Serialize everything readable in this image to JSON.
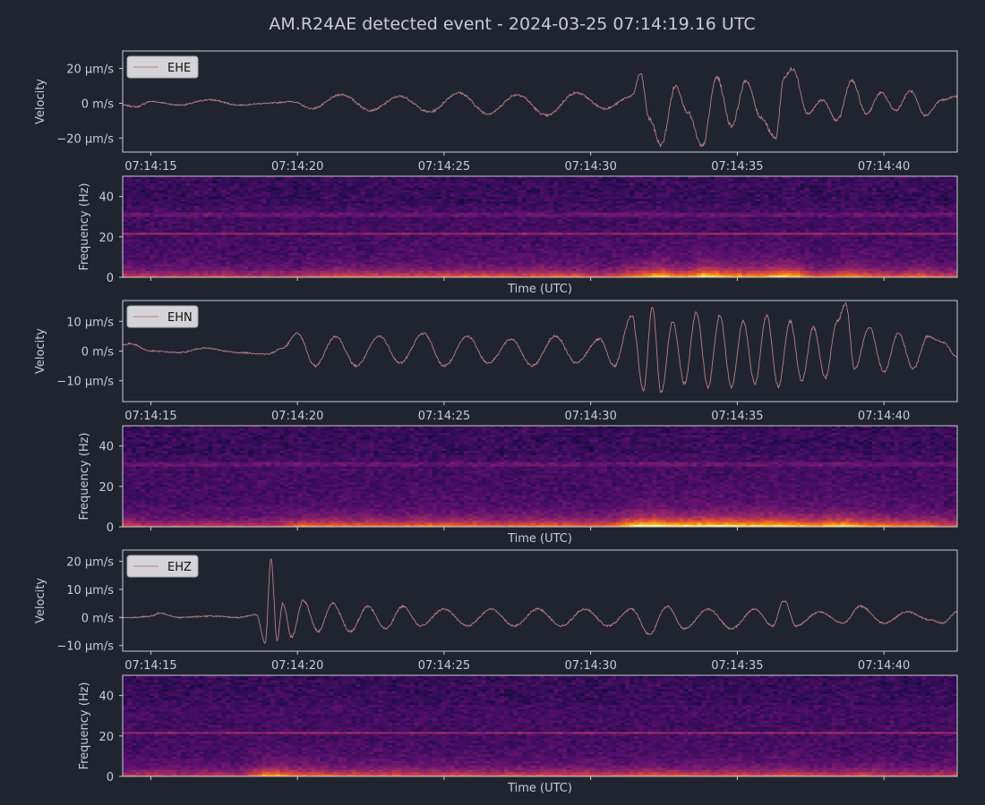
{
  "title": "AM.R24AE detected event - 2024-03-25 07:14:19.16 UTC",
  "colors": {
    "background": "#20242e",
    "trace": "#b88088",
    "axis_frame": "#c9ccd4",
    "text": "#c9ccd4",
    "legend_bg": "#d4d4d8",
    "legend_text": "#111111",
    "spectrogram_colormap": "inferno"
  },
  "chart_data": [
    {
      "type": "line",
      "channel": "EHE",
      "legend": "EHE",
      "ylabel": "Velocity",
      "ylim": [
        -28,
        30
      ],
      "y_ticks": [
        {
          "value": 20,
          "label": "20 µm/s"
        },
        {
          "value": 0,
          "label": "0 m/s"
        },
        {
          "value": -20,
          "label": "−20 µm/s"
        }
      ],
      "x_ticks": [
        "07:14:15",
        "07:14:20",
        "07:14:25",
        "07:14:30",
        "07:14:35",
        "07:14:40"
      ],
      "x_range_s": [
        14.0,
        42.5
      ],
      "legend_position": "top-left",
      "series": [
        {
          "x": [
            14.0,
            14.5,
            15.0,
            16.0,
            17.0,
            18.0,
            19.0,
            19.8,
            20.5,
            21.5,
            22.5,
            23.5,
            24.5,
            25.5,
            26.5,
            27.5,
            28.5,
            29.5,
            30.5,
            31.4,
            31.7,
            32.0,
            32.4,
            32.9,
            33.3,
            33.8,
            34.3,
            34.8,
            35.3,
            35.8,
            36.3,
            36.6,
            36.9,
            37.4,
            37.9,
            38.4,
            38.9,
            39.4,
            39.9,
            40.4,
            40.9,
            41.4,
            42.0,
            42.5
          ],
          "values": [
            -1,
            -2,
            1,
            -1,
            2,
            -1,
            0,
            1,
            -3,
            5,
            -4,
            4,
            -5,
            6,
            -6,
            5,
            -7,
            6,
            -3,
            4,
            17,
            -9,
            -24,
            10,
            -5,
            -25,
            15,
            -13,
            13,
            -8,
            -20,
            15,
            20,
            -6,
            2,
            -10,
            13,
            -6,
            6,
            -4,
            7,
            -7,
            2,
            4
          ]
        }
      ]
    },
    {
      "type": "heatmap",
      "channel": "EHE",
      "ylabel": "Frequency (Hz)",
      "xlabel": "Time (UTC)",
      "ylim": [
        0,
        50
      ],
      "y_ticks": [
        0,
        20,
        40
      ]
    },
    {
      "type": "line",
      "channel": "EHN",
      "legend": "EHN",
      "ylabel": "Velocity",
      "ylim": [
        -17,
        17
      ],
      "y_ticks": [
        {
          "value": 10,
          "label": "10 µm/s"
        },
        {
          "value": 0,
          "label": "0 m/s"
        },
        {
          "value": -10,
          "label": "−10 µm/s"
        }
      ],
      "x_ticks": [
        "07:14:15",
        "07:14:20",
        "07:14:25",
        "07:14:30",
        "07:14:35",
        "07:14:40"
      ],
      "x_range_s": [
        14.0,
        42.5
      ],
      "legend_position": "top-left",
      "series": [
        {
          "x": [
            14.0,
            14.3,
            15.0,
            16.0,
            16.8,
            18.0,
            19.0,
            19.5,
            20.0,
            20.6,
            21.3,
            22.0,
            22.8,
            23.5,
            24.3,
            25.0,
            25.8,
            26.5,
            27.3,
            28.0,
            28.8,
            29.5,
            30.3,
            30.8,
            31.4,
            31.8,
            32.1,
            32.4,
            32.8,
            33.2,
            33.6,
            34.0,
            34.4,
            34.8,
            35.2,
            35.6,
            36.0,
            36.4,
            36.8,
            37.2,
            37.6,
            38.0,
            38.4,
            38.7,
            39.0,
            39.5,
            40.0,
            40.5,
            41.0,
            41.5,
            42.0,
            42.5
          ],
          "values": [
            2,
            2.5,
            0,
            -0.5,
            1,
            -0.5,
            -1,
            1,
            6,
            -5,
            5,
            -5,
            5,
            -4,
            6,
            -5,
            5,
            -4,
            4,
            -5,
            5,
            -4,
            4,
            -5,
            12,
            -13,
            15,
            -14,
            10,
            -11,
            13,
            -12,
            12,
            -12,
            10,
            -11,
            12,
            -12,
            10,
            -10,
            8,
            -9,
            10,
            16,
            -6,
            8,
            -7,
            6,
            -6,
            5,
            3,
            -2
          ]
        }
      ]
    },
    {
      "type": "heatmap",
      "channel": "EHN",
      "ylabel": "Frequency (Hz)",
      "xlabel": "Time (UTC)",
      "ylim": [
        0,
        50
      ],
      "y_ticks": [
        0,
        20,
        40
      ]
    },
    {
      "type": "line",
      "channel": "EHZ",
      "legend": "EHZ",
      "ylabel": "Velocity",
      "ylim": [
        -12,
        24
      ],
      "y_ticks": [
        {
          "value": 20,
          "label": "20 µm/s"
        },
        {
          "value": 10,
          "label": "10 µm/s"
        },
        {
          "value": 0,
          "label": "0 m/s"
        },
        {
          "value": -10,
          "label": "−10 µm/s"
        }
      ],
      "x_ticks": [
        "07:14:15",
        "07:14:20",
        "07:14:25",
        "07:14:30",
        "07:14:35",
        "07:14:40"
      ],
      "x_range_s": [
        14.0,
        42.5
      ],
      "legend_position": "top-left",
      "series": [
        {
          "x": [
            14.0,
            14.5,
            15.0,
            15.3,
            16.0,
            17.0,
            18.0,
            18.6,
            18.9,
            19.1,
            19.3,
            19.5,
            19.8,
            20.2,
            20.7,
            21.2,
            21.8,
            22.4,
            23.0,
            23.6,
            24.2,
            25.0,
            25.8,
            26.6,
            27.4,
            28.2,
            29.0,
            29.8,
            30.6,
            31.4,
            32.0,
            32.6,
            33.2,
            34.0,
            34.8,
            35.6,
            36.2,
            36.6,
            37.0,
            37.8,
            38.6,
            39.2,
            40.0,
            40.8,
            41.6,
            42.0,
            42.5
          ],
          "values": [
            0,
            0,
            0.5,
            1.5,
            0,
            0.5,
            0,
            1,
            -9,
            21,
            -8,
            5,
            -7,
            6,
            -5,
            5,
            -5,
            4,
            -4,
            4,
            -3,
            3,
            -3,
            3,
            -3,
            3,
            -3,
            3,
            -3,
            3,
            -6,
            4,
            -4,
            3,
            -4,
            3,
            -3,
            6,
            -3,
            2,
            -2,
            4,
            -2,
            2,
            -1,
            -2,
            2
          ]
        }
      ]
    },
    {
      "type": "heatmap",
      "channel": "EHZ",
      "ylabel": "Frequency (Hz)",
      "xlabel": "Time (UTC)",
      "ylim": [
        0,
        50
      ],
      "y_ticks": [
        0,
        20,
        40
      ]
    }
  ]
}
